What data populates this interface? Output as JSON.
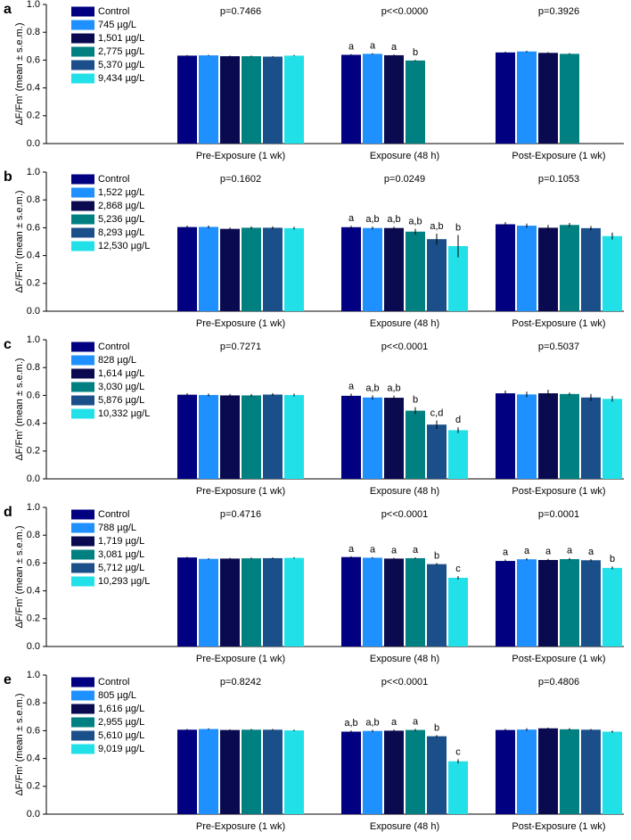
{
  "chart_data": [
    {
      "type": "bar",
      "label": "a",
      "y_label": "ΔF/Fm' (mean ± s.e.m.)",
      "categories": [
        "Pre-Exposure (1 wk)",
        "Exposure (48 h)",
        "Post-Exposure (1 wk)"
      ],
      "p_labels": [
        "p=0.7466",
        "p<<0.0000",
        "p=0.3926"
      ],
      "ylim": [
        0,
        1
      ],
      "yticks": [
        {
          "value": 0,
          "label": "0.0"
        },
        0.2,
        0.4,
        0.6,
        0.8,
        {
          "value": 1,
          "label": "1.0"
        }
      ],
      "series": [
        {
          "name": "Control",
          "color": "#000080",
          "values": [
            0.632,
            0.638,
            0.655
          ],
          "errors": [
            0.004,
            0.005,
            0.005
          ],
          "letters": [
            null,
            "a",
            null
          ]
        },
        {
          "name": "745 µg/L",
          "color": "#1e90ff",
          "values": [
            0.634,
            0.645,
            0.662
          ],
          "errors": [
            0.004,
            0.005,
            0.005
          ],
          "letters": [
            null,
            "a",
            null
          ]
        },
        {
          "name": "1,501 µg/L",
          "color": "#0a0a50",
          "values": [
            0.628,
            0.635,
            0.652
          ],
          "errors": [
            0.004,
            0.005,
            0.005
          ],
          "letters": [
            null,
            "a",
            null
          ]
        },
        {
          "name": "2,775 µg/L",
          "color": "#008080",
          "values": [
            0.628,
            0.597,
            0.645
          ],
          "errors": [
            0.004,
            0.005,
            0.005
          ],
          "letters": [
            null,
            "b",
            null
          ]
        },
        {
          "name": "5,370 µg/L",
          "color": "#1a4f8a",
          "values": [
            0.625,
            null,
            null
          ],
          "errors": [
            0.004,
            null,
            null
          ],
          "letters": [
            null,
            null,
            null
          ]
        },
        {
          "name": "9,434 µg/L",
          "color": "#22e0e8",
          "values": [
            0.632,
            null,
            null
          ],
          "errors": [
            0.004,
            null,
            null
          ],
          "letters": [
            null,
            null,
            null
          ]
        }
      ]
    },
    {
      "type": "bar",
      "label": "b",
      "y_label": "ΔF/Fm' (mean ± s.e.m.)",
      "categories": [
        "Pre-Exposure (1 wk)",
        "Exposure (48 h)",
        "Post-Exposure (1 wk)"
      ],
      "p_labels": [
        "p=0.1602",
        "p=0.0249",
        "p=0.1053"
      ],
      "ylim": [
        0,
        1
      ],
      "yticks": [
        {
          "value": 0,
          "label": "0.0"
        },
        0.2,
        0.4,
        0.6,
        0.8,
        {
          "value": 1,
          "label": "1.0"
        }
      ],
      "series": [
        {
          "name": "Control",
          "color": "#000080",
          "values": [
            0.605,
            0.604,
            0.625
          ],
          "errors": [
            0.01,
            0.01,
            0.015
          ],
          "letters": [
            null,
            "a",
            null
          ]
        },
        {
          "name": "1,522 µg/L",
          "color": "#1e90ff",
          "values": [
            0.606,
            0.598,
            0.615
          ],
          "errors": [
            0.01,
            0.01,
            0.015
          ],
          "letters": [
            null,
            "a,b",
            null
          ]
        },
        {
          "name": "2,868 µg/L",
          "color": "#0a0a50",
          "values": [
            0.592,
            0.598,
            0.6
          ],
          "errors": [
            0.01,
            0.01,
            0.02
          ],
          "letters": [
            null,
            "a,b",
            null
          ]
        },
        {
          "name": "5,236 µg/L",
          "color": "#008080",
          "values": [
            0.6,
            0.572,
            0.62
          ],
          "errors": [
            0.01,
            0.02,
            0.015
          ],
          "letters": [
            null,
            "a,b",
            null
          ]
        },
        {
          "name": "8,293 µg/L",
          "color": "#1a4f8a",
          "values": [
            0.6,
            0.518,
            0.597
          ],
          "errors": [
            0.01,
            0.04,
            0.015
          ],
          "letters": [
            null,
            "a,b",
            null
          ]
        },
        {
          "name": "12,530 µg/L",
          "color": "#22e0e8",
          "values": [
            0.597,
            0.468,
            0.54
          ],
          "errors": [
            0.01,
            0.08,
            0.025
          ],
          "letters": [
            null,
            "b",
            null
          ]
        }
      ]
    },
    {
      "type": "bar",
      "label": "c",
      "y_label": "ΔF/Fm' (mean ± s.e.m.)",
      "categories": [
        "Pre-Exposure (1 wk)",
        "Exposure (48 h)",
        "Post-Exposure (1 wk)"
      ],
      "p_labels": [
        "p=0.7271",
        "p<<0.0001",
        "p=0.5037"
      ],
      "ylim": [
        0,
        1
      ],
      "yticks": [
        {
          "value": 0,
          "label": "0.0"
        },
        0.2,
        0.4,
        0.6,
        0.8,
        {
          "value": 1,
          "label": "1.0"
        }
      ],
      "series": [
        {
          "name": "Control",
          "color": "#000080",
          "values": [
            0.605,
            0.597,
            0.615
          ],
          "errors": [
            0.01,
            0.015,
            0.02
          ],
          "letters": [
            null,
            "a",
            null
          ]
        },
        {
          "name": "828 µg/L",
          "color": "#1e90ff",
          "values": [
            0.603,
            0.585,
            0.607
          ],
          "errors": [
            0.01,
            0.015,
            0.02
          ],
          "letters": [
            null,
            "a,b",
            null
          ]
        },
        {
          "name": "1,614 µg/L",
          "color": "#0a0a50",
          "values": [
            0.6,
            0.583,
            0.615
          ],
          "errors": [
            0.01,
            0.015,
            0.025
          ],
          "letters": [
            null,
            "a,b",
            null
          ]
        },
        {
          "name": "3,030 µg/L",
          "color": "#008080",
          "values": [
            0.6,
            0.49,
            0.61
          ],
          "errors": [
            0.01,
            0.025,
            0.01
          ],
          "letters": [
            null,
            "b",
            null
          ]
        },
        {
          "name": "5,876 µg/L",
          "color": "#1a4f8a",
          "values": [
            0.606,
            0.39,
            0.585
          ],
          "errors": [
            0.01,
            0.03,
            0.025
          ],
          "letters": [
            null,
            "c,d",
            null
          ]
        },
        {
          "name": "10,332 µg/L",
          "color": "#22e0e8",
          "values": [
            0.603,
            0.35,
            0.575
          ],
          "errors": [
            0.01,
            0.02,
            0.02
          ],
          "letters": [
            null,
            "d",
            null
          ]
        }
      ]
    },
    {
      "type": "bar",
      "label": "d",
      "y_label": "ΔF/Fm' (mean ± s.e.m.)",
      "categories": [
        "Pre-Exposure (1 wk)",
        "Exposure (48 h)",
        "Post-Exposure (1 wk)"
      ],
      "p_labels": [
        "p=0.4716",
        "p<<0.0001",
        "p=0.0001"
      ],
      "ylim": [
        0,
        1
      ],
      "yticks": [
        {
          "value": 0,
          "label": "0.0"
        },
        0.2,
        0.4,
        0.6,
        0.8,
        {
          "value": 1,
          "label": "1.0"
        }
      ],
      "series": [
        {
          "name": "Control",
          "color": "#000080",
          "values": [
            0.64,
            0.643,
            0.615
          ],
          "errors": [
            0.005,
            0.005,
            0.01
          ],
          "letters": [
            null,
            "a",
            "a"
          ]
        },
        {
          "name": "788 µg/L",
          "color": "#1e90ff",
          "values": [
            0.63,
            0.638,
            0.627
          ],
          "errors": [
            0.005,
            0.005,
            0.008
          ],
          "letters": [
            null,
            "a",
            "a"
          ]
        },
        {
          "name": "1,719 µg/L",
          "color": "#0a0a50",
          "values": [
            0.632,
            0.632,
            0.622
          ],
          "errors": [
            0.005,
            0.005,
            0.008
          ],
          "letters": [
            null,
            "a",
            "a"
          ]
        },
        {
          "name": "3,081 µg/L",
          "color": "#008080",
          "values": [
            0.634,
            0.635,
            0.628
          ],
          "errors": [
            0.005,
            0.005,
            0.008
          ],
          "letters": [
            null,
            "a",
            "a"
          ]
        },
        {
          "name": "5,712 µg/L",
          "color": "#1a4f8a",
          "values": [
            0.635,
            0.592,
            0.62
          ],
          "errors": [
            0.005,
            0.008,
            0.008
          ],
          "letters": [
            null,
            "b",
            "a"
          ]
        },
        {
          "name": "10,293 µg/L",
          "color": "#22e0e8",
          "values": [
            0.637,
            0.494,
            0.565
          ],
          "errors": [
            0.005,
            0.012,
            0.01
          ],
          "letters": [
            null,
            "c",
            "b"
          ]
        }
      ]
    },
    {
      "type": "bar",
      "label": "e",
      "y_label": "ΔF/Fm' (mean ± s.e.m.)",
      "categories": [
        "Pre-Exposure (1 wk)",
        "Exposure (48 h)",
        "Post-Exposure (1 wk)"
      ],
      "p_labels": [
        "p=0.8242",
        "p<<0.0001",
        "p=0.4806"
      ],
      "ylim": [
        0,
        1
      ],
      "yticks": [
        {
          "value": 0,
          "label": "0.0"
        },
        0.2,
        0.4,
        0.6,
        0.8,
        {
          "value": 1,
          "label": "1.0"
        }
      ],
      "series": [
        {
          "name": "Control",
          "color": "#000080",
          "values": [
            0.607,
            0.593,
            0.605
          ],
          "errors": [
            0.005,
            0.008,
            0.008
          ],
          "letters": [
            null,
            "a,b",
            null
          ]
        },
        {
          "name": "805 µg/L",
          "color": "#1e90ff",
          "values": [
            0.612,
            0.598,
            0.608
          ],
          "errors": [
            0.005,
            0.008,
            0.01
          ],
          "letters": [
            null,
            "a,b",
            null
          ]
        },
        {
          "name": "1,616 µg/L",
          "color": "#0a0a50",
          "values": [
            0.605,
            0.6,
            0.617
          ],
          "errors": [
            0.005,
            0.008,
            0.005
          ],
          "letters": [
            null,
            "a",
            null
          ]
        },
        {
          "name": "2,955 µg/L",
          "color": "#008080",
          "values": [
            0.607,
            0.605,
            0.61
          ],
          "errors": [
            0.005,
            0.008,
            0.008
          ],
          "letters": [
            null,
            "a",
            null
          ]
        },
        {
          "name": "5,610 µg/L",
          "color": "#1a4f8a",
          "values": [
            0.607,
            0.56,
            0.607
          ],
          "errors": [
            0.005,
            0.008,
            0.005
          ],
          "letters": [
            null,
            "b",
            null
          ]
        },
        {
          "name": "9,019 µg/L",
          "color": "#22e0e8",
          "values": [
            0.602,
            0.38,
            0.593
          ],
          "errors": [
            0.005,
            0.015,
            0.008
          ],
          "letters": [
            null,
            "c",
            null
          ]
        }
      ]
    }
  ]
}
